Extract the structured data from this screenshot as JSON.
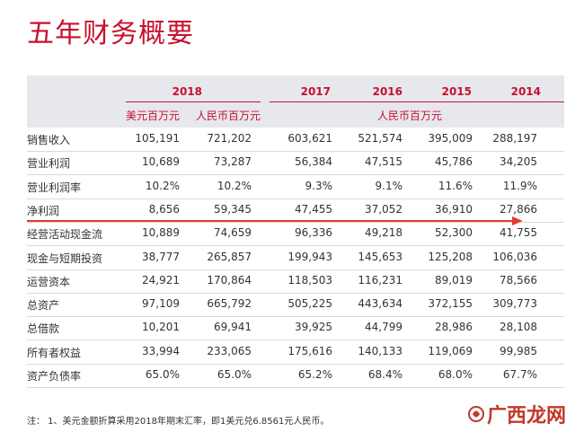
{
  "title": "五年财务概要",
  "header": {
    "years": [
      "2018",
      "2017",
      "2016",
      "2015",
      "2014"
    ],
    "unit_usd": "美元百万元",
    "unit_rmb": "人民币百万元",
    "unit_rmb_span": "人民币百万元"
  },
  "rows": [
    {
      "label": "销售收入",
      "values": [
        "105,191",
        "721,202",
        "603,621",
        "521,574",
        "395,009",
        "288,197"
      ]
    },
    {
      "label": "营业利润",
      "values": [
        "10,689",
        "73,287",
        "56,384",
        "47,515",
        "45,786",
        "34,205"
      ]
    },
    {
      "label": "营业利润率",
      "values": [
        "10.2%",
        "10.2%",
        "9.3%",
        "9.1%",
        "11.6%",
        "11.9%"
      ]
    },
    {
      "label": "净利润",
      "values": [
        "8,656",
        "59,345",
        "47,455",
        "37,052",
        "36,910",
        "27,866"
      ]
    },
    {
      "label": "经营活动现金流",
      "values": [
        "10,889",
        "74,659",
        "96,336",
        "49,218",
        "52,300",
        "41,755"
      ]
    },
    {
      "label": "现金与短期投资",
      "values": [
        "38,777",
        "265,857",
        "199,943",
        "145,653",
        "125,208",
        "106,036"
      ]
    },
    {
      "label": "运营资本",
      "values": [
        "24,921",
        "170,864",
        "118,503",
        "116,231",
        "89,019",
        "78,566"
      ]
    },
    {
      "label": "总资产",
      "values": [
        "97,109",
        "665,792",
        "505,225",
        "443,634",
        "372,155",
        "309,773"
      ]
    },
    {
      "label": "总借款",
      "values": [
        "10,201",
        "69,941",
        "39,925",
        "44,799",
        "28,986",
        "28,108"
      ]
    },
    {
      "label": "所有者权益",
      "values": [
        "33,994",
        "233,065",
        "175,616",
        "140,133",
        "119,069",
        "99,985"
      ]
    },
    {
      "label": "资产负债率",
      "values": [
        "65.0%",
        "65.0%",
        "65.2%",
        "68.4%",
        "68.0%",
        "67.7%"
      ]
    }
  ],
  "note": "注：    1、美元金额折算采用2018年期末汇率，即1美元兑6.8561元人民币。",
  "watermark": "广西龙网",
  "colors": {
    "accent": "#c8102e",
    "band": "#e6e8ee",
    "arrow": "#e53935"
  }
}
